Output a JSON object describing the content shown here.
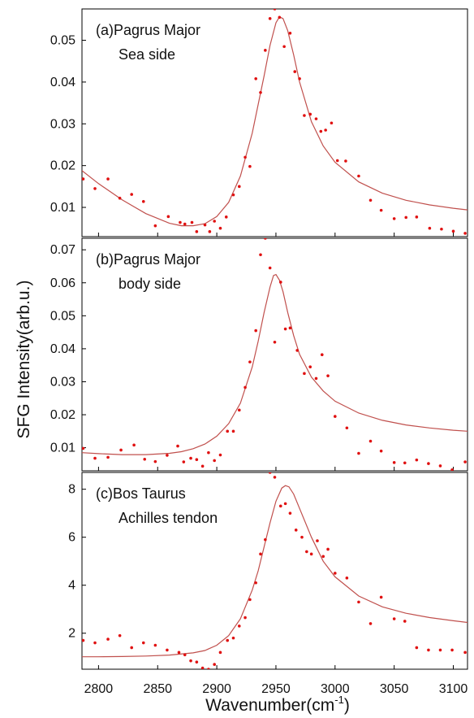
{
  "ylabel": "SFG Intensity(arb.u.)",
  "xlabel_main": "Wavenumber(cm",
  "xlabel_sup": "-1",
  "xlabel_close": ")",
  "xticks": [
    "2800",
    "2850",
    "2900",
    "2950",
    "3000",
    "3050",
    "3100"
  ],
  "colors": {
    "fit": "#c0504d",
    "points": "#e01010",
    "axis": "#000000"
  },
  "chart_data": [
    {
      "type": "scatter",
      "panel_label": "(a)",
      "annotation": [
        "Pagrus Major",
        "Sea side"
      ],
      "xlim": [
        2786,
        3112
      ],
      "ylim": [
        0.003,
        0.0575
      ],
      "yticks": [
        "0.01",
        "0.02",
        "0.03",
        "0.04",
        "0.05"
      ],
      "points": {
        "x": [
          2787,
          2797,
          2808,
          2818,
          2828,
          2838,
          2848,
          2859,
          2869,
          2873,
          2879,
          2883,
          2890,
          2894,
          2898,
          2903,
          2908,
          2914,
          2919,
          2924,
          2928,
          2933,
          2937,
          2941,
          2945,
          2949,
          2953,
          2957,
          2962,
          2966,
          2970,
          2974,
          2979,
          2984,
          2988,
          2992,
          2997,
          3002,
          3009,
          3020,
          3030,
          3039,
          3050,
          3060,
          3069,
          3080,
          3090,
          3100,
          3110
        ],
        "y": [
          0.0168,
          0.0145,
          0.0168,
          0.0122,
          0.0131,
          0.0114,
          0.0056,
          0.0078,
          0.0064,
          0.006,
          0.0064,
          0.0042,
          0.0058,
          0.0042,
          0.0067,
          0.005,
          0.0077,
          0.013,
          0.015,
          0.022,
          0.0198,
          0.0408,
          0.0375,
          0.0476,
          0.0552,
          0.0575,
          0.0555,
          0.0485,
          0.0517,
          0.0425,
          0.0408,
          0.032,
          0.0323,
          0.0312,
          0.0282,
          0.0285,
          0.0302,
          0.0212,
          0.0211,
          0.0175,
          0.0117,
          0.0093,
          0.0073,
          0.0076,
          0.0077,
          0.005,
          0.0048,
          0.0043,
          0.0038
        ]
      },
      "fit": {
        "x": [
          2786,
          2800,
          2820,
          2840,
          2860,
          2870,
          2880,
          2890,
          2900,
          2910,
          2920,
          2930,
          2940,
          2945,
          2950,
          2953,
          2956,
          2960,
          2965,
          2970,
          2980,
          2990,
          3000,
          3020,
          3040,
          3060,
          3080,
          3100,
          3112
        ],
        "y": [
          0.0188,
          0.0157,
          0.0118,
          0.0085,
          0.0062,
          0.0056,
          0.0056,
          0.0061,
          0.0078,
          0.0112,
          0.0175,
          0.0278,
          0.0415,
          0.0488,
          0.0542,
          0.0556,
          0.0552,
          0.0523,
          0.0465,
          0.04,
          0.0305,
          0.0247,
          0.0208,
          0.0161,
          0.0134,
          0.0117,
          0.0106,
          0.0098,
          0.0094
        ]
      }
    },
    {
      "type": "scatter",
      "panel_label": "(b)",
      "annotation": [
        "Pagrus Major",
        "body side"
      ],
      "xlim": [
        2786,
        3112
      ],
      "ylim": [
        0.003,
        0.0735
      ],
      "yticks": [
        "0.01",
        "0.02",
        "0.03",
        "0.04",
        "0.05",
        "0.06",
        "0.07"
      ],
      "points": {
        "x": [
          2787,
          2797,
          2808,
          2819,
          2830,
          2839,
          2848,
          2858,
          2867,
          2872,
          2878,
          2883,
          2888,
          2893,
          2898,
          2903,
          2909,
          2914,
          2919,
          2924,
          2928,
          2933,
          2937,
          2941,
          2945,
          2949,
          2954,
          2958,
          2962,
          2968,
          2974,
          2979,
          2984,
          2989,
          2994,
          3000,
          3010,
          3020,
          3030,
          3039,
          3050,
          3059,
          3069,
          3079,
          3089,
          3099,
          3110
        ],
        "y": [
          0.0098,
          0.0068,
          0.0071,
          0.0093,
          0.0108,
          0.0065,
          0.0058,
          0.0077,
          0.0105,
          0.0057,
          0.0068,
          0.0064,
          0.0044,
          0.0085,
          0.0061,
          0.0078,
          0.015,
          0.015,
          0.0214,
          0.0283,
          0.036,
          0.0455,
          0.0685,
          0.0735,
          0.0645,
          0.042,
          0.0602,
          0.046,
          0.0463,
          0.0395,
          0.0325,
          0.0345,
          0.031,
          0.0382,
          0.0318,
          0.0195,
          0.016,
          0.0083,
          0.012,
          0.009,
          0.0055,
          0.0054,
          0.0063,
          0.0052,
          0.0045,
          0.0033,
          0.0057
        ]
      },
      "fit": {
        "x": [
          2786,
          2800,
          2820,
          2840,
          2860,
          2870,
          2880,
          2890,
          2900,
          2910,
          2920,
          2930,
          2935,
          2940,
          2945,
          2948,
          2950,
          2953,
          2956,
          2960,
          2965,
          2970,
          2980,
          2990,
          3000,
          3020,
          3040,
          3060,
          3080,
          3100,
          3112
        ],
        "y": [
          0.0085,
          0.0082,
          0.0079,
          0.0079,
          0.0083,
          0.0088,
          0.0097,
          0.0111,
          0.0135,
          0.0173,
          0.0235,
          0.0345,
          0.0423,
          0.051,
          0.0587,
          0.0622,
          0.0625,
          0.0608,
          0.0573,
          0.051,
          0.044,
          0.0383,
          0.0314,
          0.0272,
          0.0241,
          0.0205,
          0.0183,
          0.0169,
          0.016,
          0.0153,
          0.015
        ]
      }
    },
    {
      "type": "scatter",
      "panel_label": "(c)",
      "annotation": [
        "Bos Taurus",
        "Achilles tendon"
      ],
      "xlim": [
        2786,
        3112
      ],
      "ylim": [
        0.5,
        8.7
      ],
      "yticks": [
        "2",
        "4",
        "6",
        "8"
      ],
      "points": {
        "x": [
          2787,
          2797,
          2808,
          2818,
          2828,
          2838,
          2848,
          2858,
          2868,
          2873,
          2878,
          2883,
          2888,
          2893,
          2898,
          2903,
          2909,
          2914,
          2919,
          2924,
          2928,
          2933,
          2937,
          2941,
          2945,
          2949,
          2954,
          2958,
          2962,
          2967,
          2972,
          2976,
          2980,
          2985,
          2990,
          2994,
          3000,
          3010,
          3020,
          3030,
          3039,
          3050,
          3059,
          3069,
          3079,
          3089,
          3099,
          3110
        ],
        "y": [
          1.7,
          1.6,
          1.75,
          1.9,
          1.4,
          1.6,
          1.5,
          1.3,
          1.2,
          1.1,
          0.85,
          0.8,
          0.55,
          0.5,
          0.7,
          1.2,
          1.7,
          1.8,
          2.3,
          2.65,
          3.4,
          4.1,
          5.3,
          5.9,
          8.7,
          8.5,
          7.3,
          7.4,
          7.0,
          6.3,
          6.0,
          5.4,
          5.3,
          5.85,
          5.2,
          5.5,
          4.5,
          4.3,
          3.3,
          2.4,
          3.5,
          2.6,
          2.5,
          1.4,
          1.3,
          1.3,
          1.3,
          1.2
        ]
      },
      "fit": {
        "x": [
          2786,
          2800,
          2820,
          2840,
          2860,
          2880,
          2890,
          2900,
          2910,
          2920,
          2930,
          2935,
          2940,
          2945,
          2950,
          2955,
          2958,
          2961,
          2965,
          2970,
          2980,
          2990,
          3000,
          3020,
          3040,
          3060,
          3080,
          3100,
          3112
        ],
        "y": [
          1.02,
          1.02,
          1.03,
          1.05,
          1.09,
          1.18,
          1.28,
          1.5,
          1.9,
          2.6,
          3.8,
          4.6,
          5.6,
          6.6,
          7.5,
          8.05,
          8.15,
          8.1,
          7.8,
          7.2,
          6.0,
          5.0,
          4.35,
          3.55,
          3.1,
          2.83,
          2.65,
          2.52,
          2.45
        ]
      }
    }
  ]
}
